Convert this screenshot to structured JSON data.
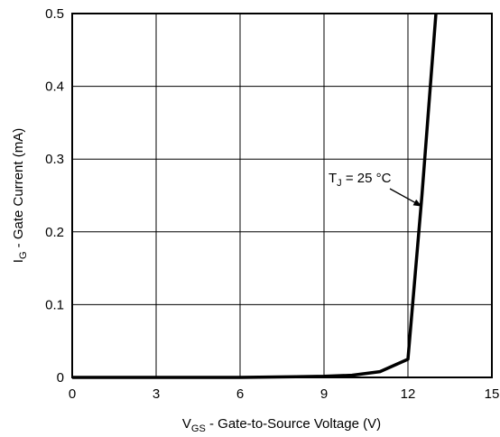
{
  "chart_data": {
    "type": "line",
    "xlabel": {
      "main": "V",
      "sub": "GS",
      "rest": " - Gate-to-Source Voltage (V)"
    },
    "ylabel": {
      "main": "I",
      "sub": "G",
      "rest": " - Gate Current (mA)"
    },
    "xlim": [
      0,
      15
    ],
    "ylim": [
      0,
      0.5
    ],
    "xticks": [
      "0",
      "3",
      "6",
      "9",
      "12",
      "15"
    ],
    "yticks": [
      "0",
      "0.1",
      "0.2",
      "0.3",
      "0.4",
      "0.5"
    ],
    "grid": true,
    "series": [
      {
        "x": [
          0,
          3,
          6,
          7,
          8,
          9,
          10,
          11,
          12,
          12.5,
          13
        ],
        "y": [
          0,
          0,
          0,
          0.0005,
          0.001,
          0.0015,
          0.003,
          0.008,
          0.025,
          0.25,
          0.5
        ]
      }
    ],
    "annotations": [
      {
        "main": "T",
        "sub": "J",
        "rest": " = 25 °C",
        "x": 12.5,
        "y": 0.235
      }
    ]
  }
}
